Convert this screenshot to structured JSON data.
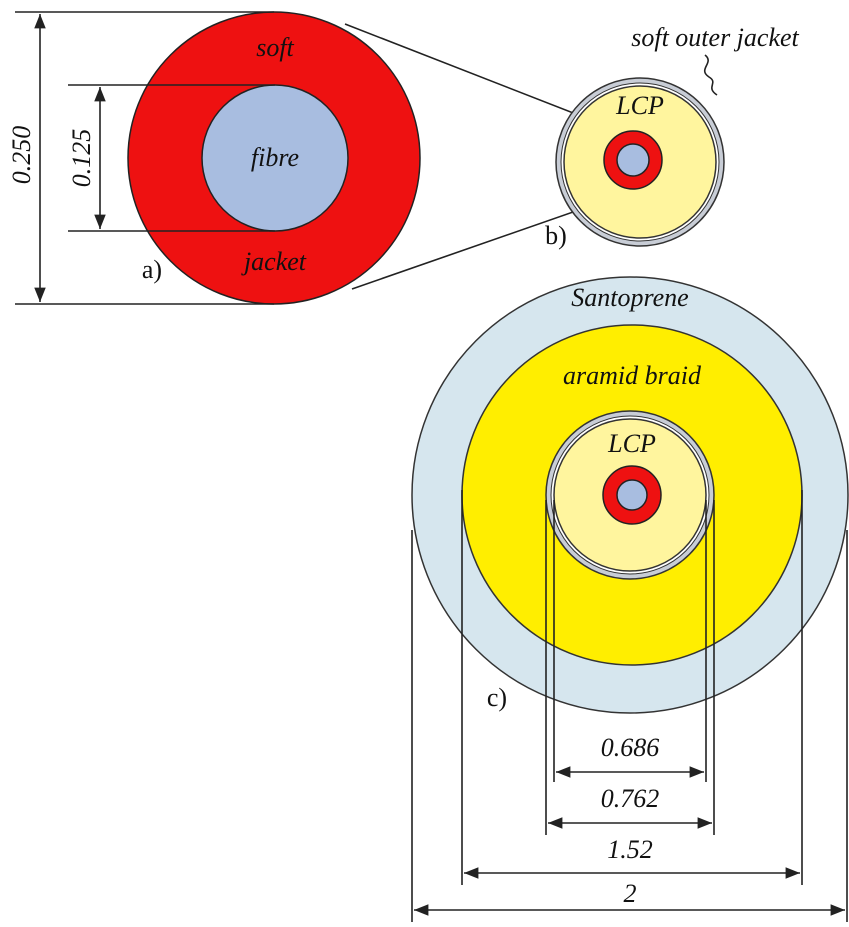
{
  "panel_a": {
    "label": "a)",
    "outer_text": "soft",
    "core_text": "fibre",
    "jacket_text": "jacket",
    "outer_dimension": "0.250",
    "core_dimension": "0.125"
  },
  "panel_b": {
    "label": "b)",
    "callout": "soft outer jacket",
    "core_text": "LCP"
  },
  "panel_c": {
    "label": "c)",
    "outer_text": "Santoprene",
    "braid_text": "aramid braid",
    "core_text": "LCP",
    "dimensions": [
      "0.686",
      "0.762",
      "1.52",
      "2"
    ]
  }
}
